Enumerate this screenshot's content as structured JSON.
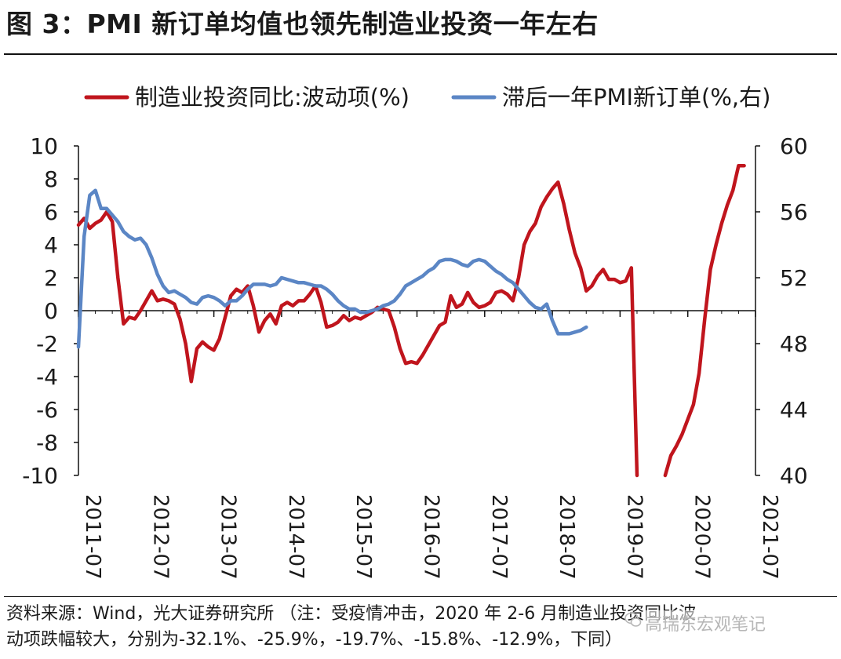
{
  "header": {
    "title": "图 3：PMI 新订单均值也领先制造业投资一年左右"
  },
  "footer": {
    "line1": "资料来源：Wind，光大证券研究所 （注：受疫情冲击，2020 年 2-6 月制造业投资同比波",
    "line2": "动项跌幅较大，分别为-32.1%、-25.9%，-19.7%、-15.8%、-12.9%，下同）",
    "watermark": "高瑞东宏观笔记"
  },
  "colors": {
    "red": "#c0151d",
    "blue": "#5b86c5",
    "axis": "#111111"
  },
  "chart_data": {
    "type": "line",
    "title": "",
    "legend_position": "top",
    "y_left": {
      "min": -10,
      "max": 10,
      "ticks": [
        "10",
        "8",
        "6",
        "4",
        "2",
        "0",
        "-2",
        "-4",
        "-6",
        "-8",
        "-10"
      ]
    },
    "y_right": {
      "min": 40,
      "max": 60,
      "ticks": [
        "60",
        "56",
        "52",
        "48",
        "44",
        "40"
      ]
    },
    "x_tick_labels": [
      "2011-07",
      "2012-07",
      "2013-07",
      "2014-07",
      "2015-07",
      "2016-07",
      "2017-07",
      "2018-07",
      "2019-07",
      "2020-07",
      "2021-07"
    ],
    "x_start": "2011-07",
    "series": [
      {
        "name": "制造业投资同比:波动项(%)",
        "axis": "left",
        "color": "#c0151d",
        "values": [
          5.2,
          5.6,
          5.0,
          5.3,
          5.5,
          6.0,
          5.4,
          2.0,
          -0.8,
          -0.4,
          -0.5,
          0.0,
          0.6,
          1.2,
          0.6,
          0.7,
          0.6,
          0.4,
          -0.5,
          -2.0,
          -4.3,
          -2.3,
          -1.9,
          -2.2,
          -2.4,
          -1.7,
          -0.4,
          0.9,
          1.3,
          1.1,
          1.5,
          0.3,
          -1.3,
          -0.6,
          -0.2,
          -0.8,
          0.3,
          0.5,
          0.3,
          0.6,
          0.6,
          1.0,
          1.5,
          0.5,
          -1.0,
          -0.9,
          -0.7,
          -0.3,
          -0.6,
          -0.4,
          -0.5,
          -0.3,
          -0.1,
          0.2,
          0.1,
          0.0,
          -1.0,
          -2.3,
          -3.2,
          -3.1,
          -3.2,
          -2.7,
          -2.1,
          -1.5,
          -0.9,
          -0.7,
          0.9,
          0.2,
          0.4,
          1.1,
          0.5,
          0.2,
          0.3,
          0.5,
          1.1,
          1.2,
          1.0,
          0.6,
          2.0,
          4.0,
          4.8,
          5.3,
          6.3,
          6.9,
          7.4,
          7.8,
          6.5,
          4.9,
          3.5,
          2.6,
          1.2,
          1.5,
          2.1,
          2.5,
          1.9,
          1.9,
          1.7,
          1.8,
          2.6,
          -10,
          null,
          null,
          null,
          null,
          -10,
          -8.8,
          -8.2,
          -7.5,
          -6.6,
          -5.7,
          -3.8,
          -0.5,
          2.5,
          4.0,
          5.3,
          6.4,
          7.3,
          8.8,
          8.8
        ]
      },
      {
        "name": "滞后一年PMI新订单(%,右)",
        "axis": "right",
        "color": "#5b86c5",
        "values": [
          47.8,
          54.5,
          57.0,
          57.3,
          56.2,
          56.2,
          55.8,
          55.4,
          54.8,
          54.5,
          54.3,
          54.4,
          54.0,
          53.2,
          52.2,
          51.5,
          51.1,
          51.2,
          51.0,
          50.8,
          50.5,
          50.4,
          50.8,
          50.9,
          50.8,
          50.6,
          50.3,
          50.6,
          50.6,
          50.9,
          51.3,
          51.6,
          51.6,
          51.6,
          51.5,
          51.6,
          52.0,
          51.9,
          51.8,
          51.7,
          51.7,
          51.6,
          51.5,
          51.5,
          51.3,
          51.0,
          50.6,
          50.3,
          50.1,
          50.1,
          49.9,
          49.9,
          50.0,
          50.1,
          50.3,
          50.4,
          50.6,
          51.0,
          51.5,
          51.7,
          51.9,
          52.1,
          52.4,
          52.6,
          53.0,
          53.1,
          53.1,
          53.0,
          52.8,
          52.7,
          53.0,
          53.1,
          53.0,
          52.7,
          52.4,
          52.2,
          51.9,
          51.7,
          51.3,
          50.9,
          50.5,
          50.2,
          50.1,
          50.4,
          49.4,
          48.6,
          48.6,
          48.6,
          48.7,
          48.8,
          49.0
        ]
      }
    ]
  }
}
